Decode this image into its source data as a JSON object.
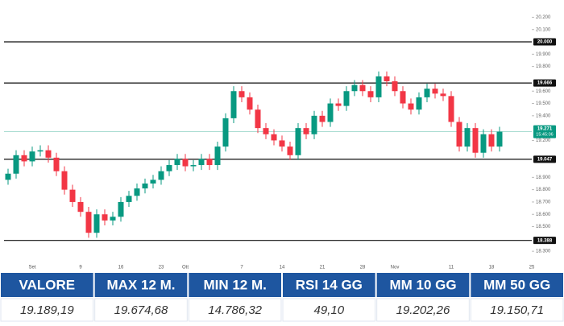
{
  "chart_data": {
    "type": "candlestick",
    "categories": [
      null,
      null,
      null,
      "Set",
      null,
      null,
      null,
      null,
      null,
      "9",
      null,
      null,
      null,
      null,
      "16",
      null,
      null,
      null,
      null,
      "23",
      null,
      null,
      "Ott",
      null,
      null,
      null,
      null,
      null,
      null,
      "7",
      null,
      null,
      null,
      null,
      "14",
      null,
      null,
      null,
      null,
      "21",
      null,
      null,
      null,
      null,
      "28",
      null,
      null,
      null,
      "Nov",
      null,
      null,
      null,
      null,
      null,
      null,
      "11",
      null,
      null,
      null,
      null,
      "18",
      null,
      null,
      null,
      null,
      "25"
    ],
    "open": [
      18880,
      18930,
      19080,
      19030,
      19110,
      19120,
      19060,
      18950,
      18800,
      18700,
      18620,
      18450,
      18600,
      18550,
      18580,
      18700,
      18750,
      18810,
      18850,
      18880,
      18950,
      19000,
      19050,
      18990,
      19000,
      19050,
      19000,
      19150,
      19380,
      19600,
      19550,
      19450,
      19300,
      19250,
      19200,
      19150,
      19080,
      19300,
      19250,
      19400,
      19350,
      19500,
      19480,
      19600,
      19650,
      19600,
      19550,
      19720,
      19680,
      19600,
      19500,
      19450,
      19550,
      19620,
      19580,
      19560,
      19350,
      19150,
      19300,
      19100,
      19250,
      19150,
      null,
      null,
      null,
      null
    ],
    "high": [
      18970,
      19120,
      19120,
      19150,
      19160,
      19160,
      19100,
      18990,
      18840,
      18740,
      18660,
      18640,
      18640,
      18620,
      18740,
      18790,
      18850,
      18890,
      18920,
      18990,
      19040,
      19090,
      19090,
      19040,
      19090,
      19090,
      19190,
      19420,
      19640,
      19640,
      19590,
      19490,
      19340,
      19290,
      19240,
      19190,
      19340,
      19340,
      19440,
      19440,
      19540,
      19540,
      19640,
      19690,
      19690,
      19640,
      19760,
      19760,
      19720,
      19640,
      19540,
      19590,
      19660,
      19660,
      19620,
      19600,
      19390,
      19340,
      19340,
      19290,
      19290,
      19311,
      null,
      null,
      null,
      null
    ],
    "low": [
      18840,
      18890,
      18990,
      18990,
      19070,
      19020,
      18910,
      18760,
      18660,
      18580,
      18410,
      18410,
      18510,
      18510,
      18540,
      18660,
      18710,
      18770,
      18810,
      18840,
      18910,
      18960,
      18950,
      18950,
      18960,
      18960,
      18960,
      19110,
      19340,
      19510,
      19410,
      19260,
      19210,
      19160,
      19110,
      19040,
      19040,
      19210,
      19210,
      19310,
      19310,
      19440,
      19440,
      19560,
      19560,
      19510,
      19510,
      19640,
      19560,
      19460,
      19410,
      19410,
      19510,
      19540,
      19520,
      19310,
      19110,
      19110,
      19060,
      19060,
      19110,
      19110,
      null,
      null,
      null,
      null
    ],
    "close": [
      18930,
      19080,
      19030,
      19110,
      19120,
      19060,
      18950,
      18800,
      18700,
      18620,
      18450,
      18600,
      18550,
      18580,
      18700,
      18750,
      18810,
      18850,
      18880,
      18950,
      19000,
      19050,
      18990,
      19000,
      19050,
      19000,
      19150,
      19380,
      19600,
      19550,
      19450,
      19300,
      19250,
      19200,
      19150,
      19080,
      19300,
      19250,
      19400,
      19350,
      19500,
      19480,
      19600,
      19650,
      19600,
      19550,
      19720,
      19680,
      19600,
      19500,
      19450,
      19550,
      19620,
      19580,
      19560,
      19350,
      19150,
      19300,
      19100,
      19250,
      19150,
      19271,
      null,
      null,
      null,
      null
    ],
    "up_color": "#089981",
    "down_color": "#f23645",
    "ylim": [
      18216,
      20340
    ],
    "yticks": [
      {
        "value": 20200,
        "label": "20.200"
      },
      {
        "value": 20100,
        "label": "20.100"
      },
      {
        "value": 19900,
        "label": "19.900"
      },
      {
        "value": 19800,
        "label": "19.800"
      },
      {
        "value": 19600,
        "label": "19.600"
      },
      {
        "value": 19500,
        "label": "19.500"
      },
      {
        "value": 19400,
        "label": "19.400"
      },
      {
        "value": 19200,
        "label": "19.200"
      },
      {
        "value": 18900,
        "label": "18.900"
      },
      {
        "value": 18800,
        "label": "18.800"
      },
      {
        "value": 18700,
        "label": "18.700"
      },
      {
        "value": 18600,
        "label": "18.600"
      },
      {
        "value": 18500,
        "label": "18.500"
      },
      {
        "value": 18300,
        "label": "18.300"
      }
    ],
    "levels": [
      {
        "value": 20000,
        "label": "20.000"
      },
      {
        "value": 19666,
        "label": "19.666"
      },
      {
        "value": 19047,
        "label": "19.047"
      },
      {
        "value": 18388,
        "label": "18.388"
      }
    ],
    "last_price": {
      "value": 19271,
      "label": "19.271",
      "time": "15:45:06"
    }
  },
  "table": {
    "header": [
      "VALORE",
      "MAX 12 M.",
      "MIN 12 M.",
      "RSI 14 GG",
      "MM 10 GG",
      "MM 50 GG"
    ],
    "rows": [
      [
        "19.189,19",
        "19.674,68",
        "14.786,32",
        "49,10",
        "19.202,26",
        "19.150,71"
      ]
    ]
  }
}
